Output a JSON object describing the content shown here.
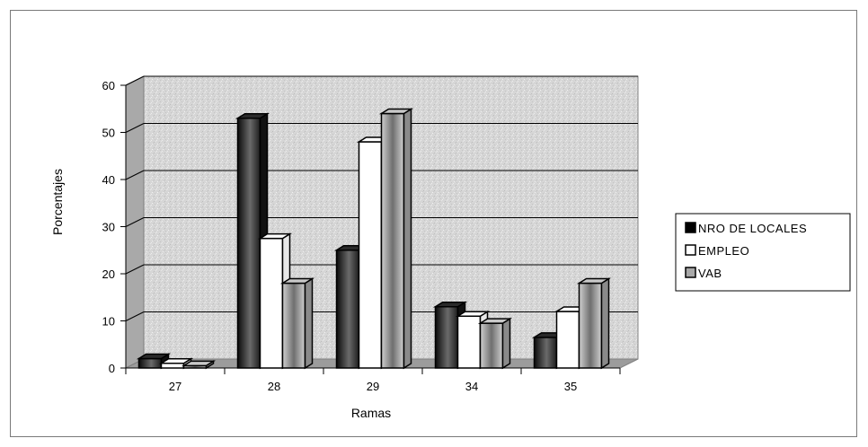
{
  "chart_data": {
    "type": "bar",
    "title": "",
    "xlabel": "Ramas",
    "ylabel": "Porcentajes",
    "categories": [
      "27",
      "28",
      "29",
      "34",
      "35"
    ],
    "ylim": [
      0,
      60
    ],
    "yticks": [
      "0",
      "10",
      "20",
      "30",
      "40",
      "50",
      "60"
    ],
    "grid": true,
    "legend_position": "right",
    "series": [
      {
        "name": "NRO DE LOCALES",
        "values": [
          2,
          53,
          25,
          13,
          6.5
        ],
        "color": "#1a1a1a"
      },
      {
        "name": "EMPLEO",
        "values": [
          1,
          27.5,
          48,
          11,
          12
        ],
        "color": "#ffffff"
      },
      {
        "name": "VAB",
        "values": [
          0.5,
          18,
          54,
          9.5,
          18
        ],
        "color": "#a8a8a8"
      }
    ]
  }
}
